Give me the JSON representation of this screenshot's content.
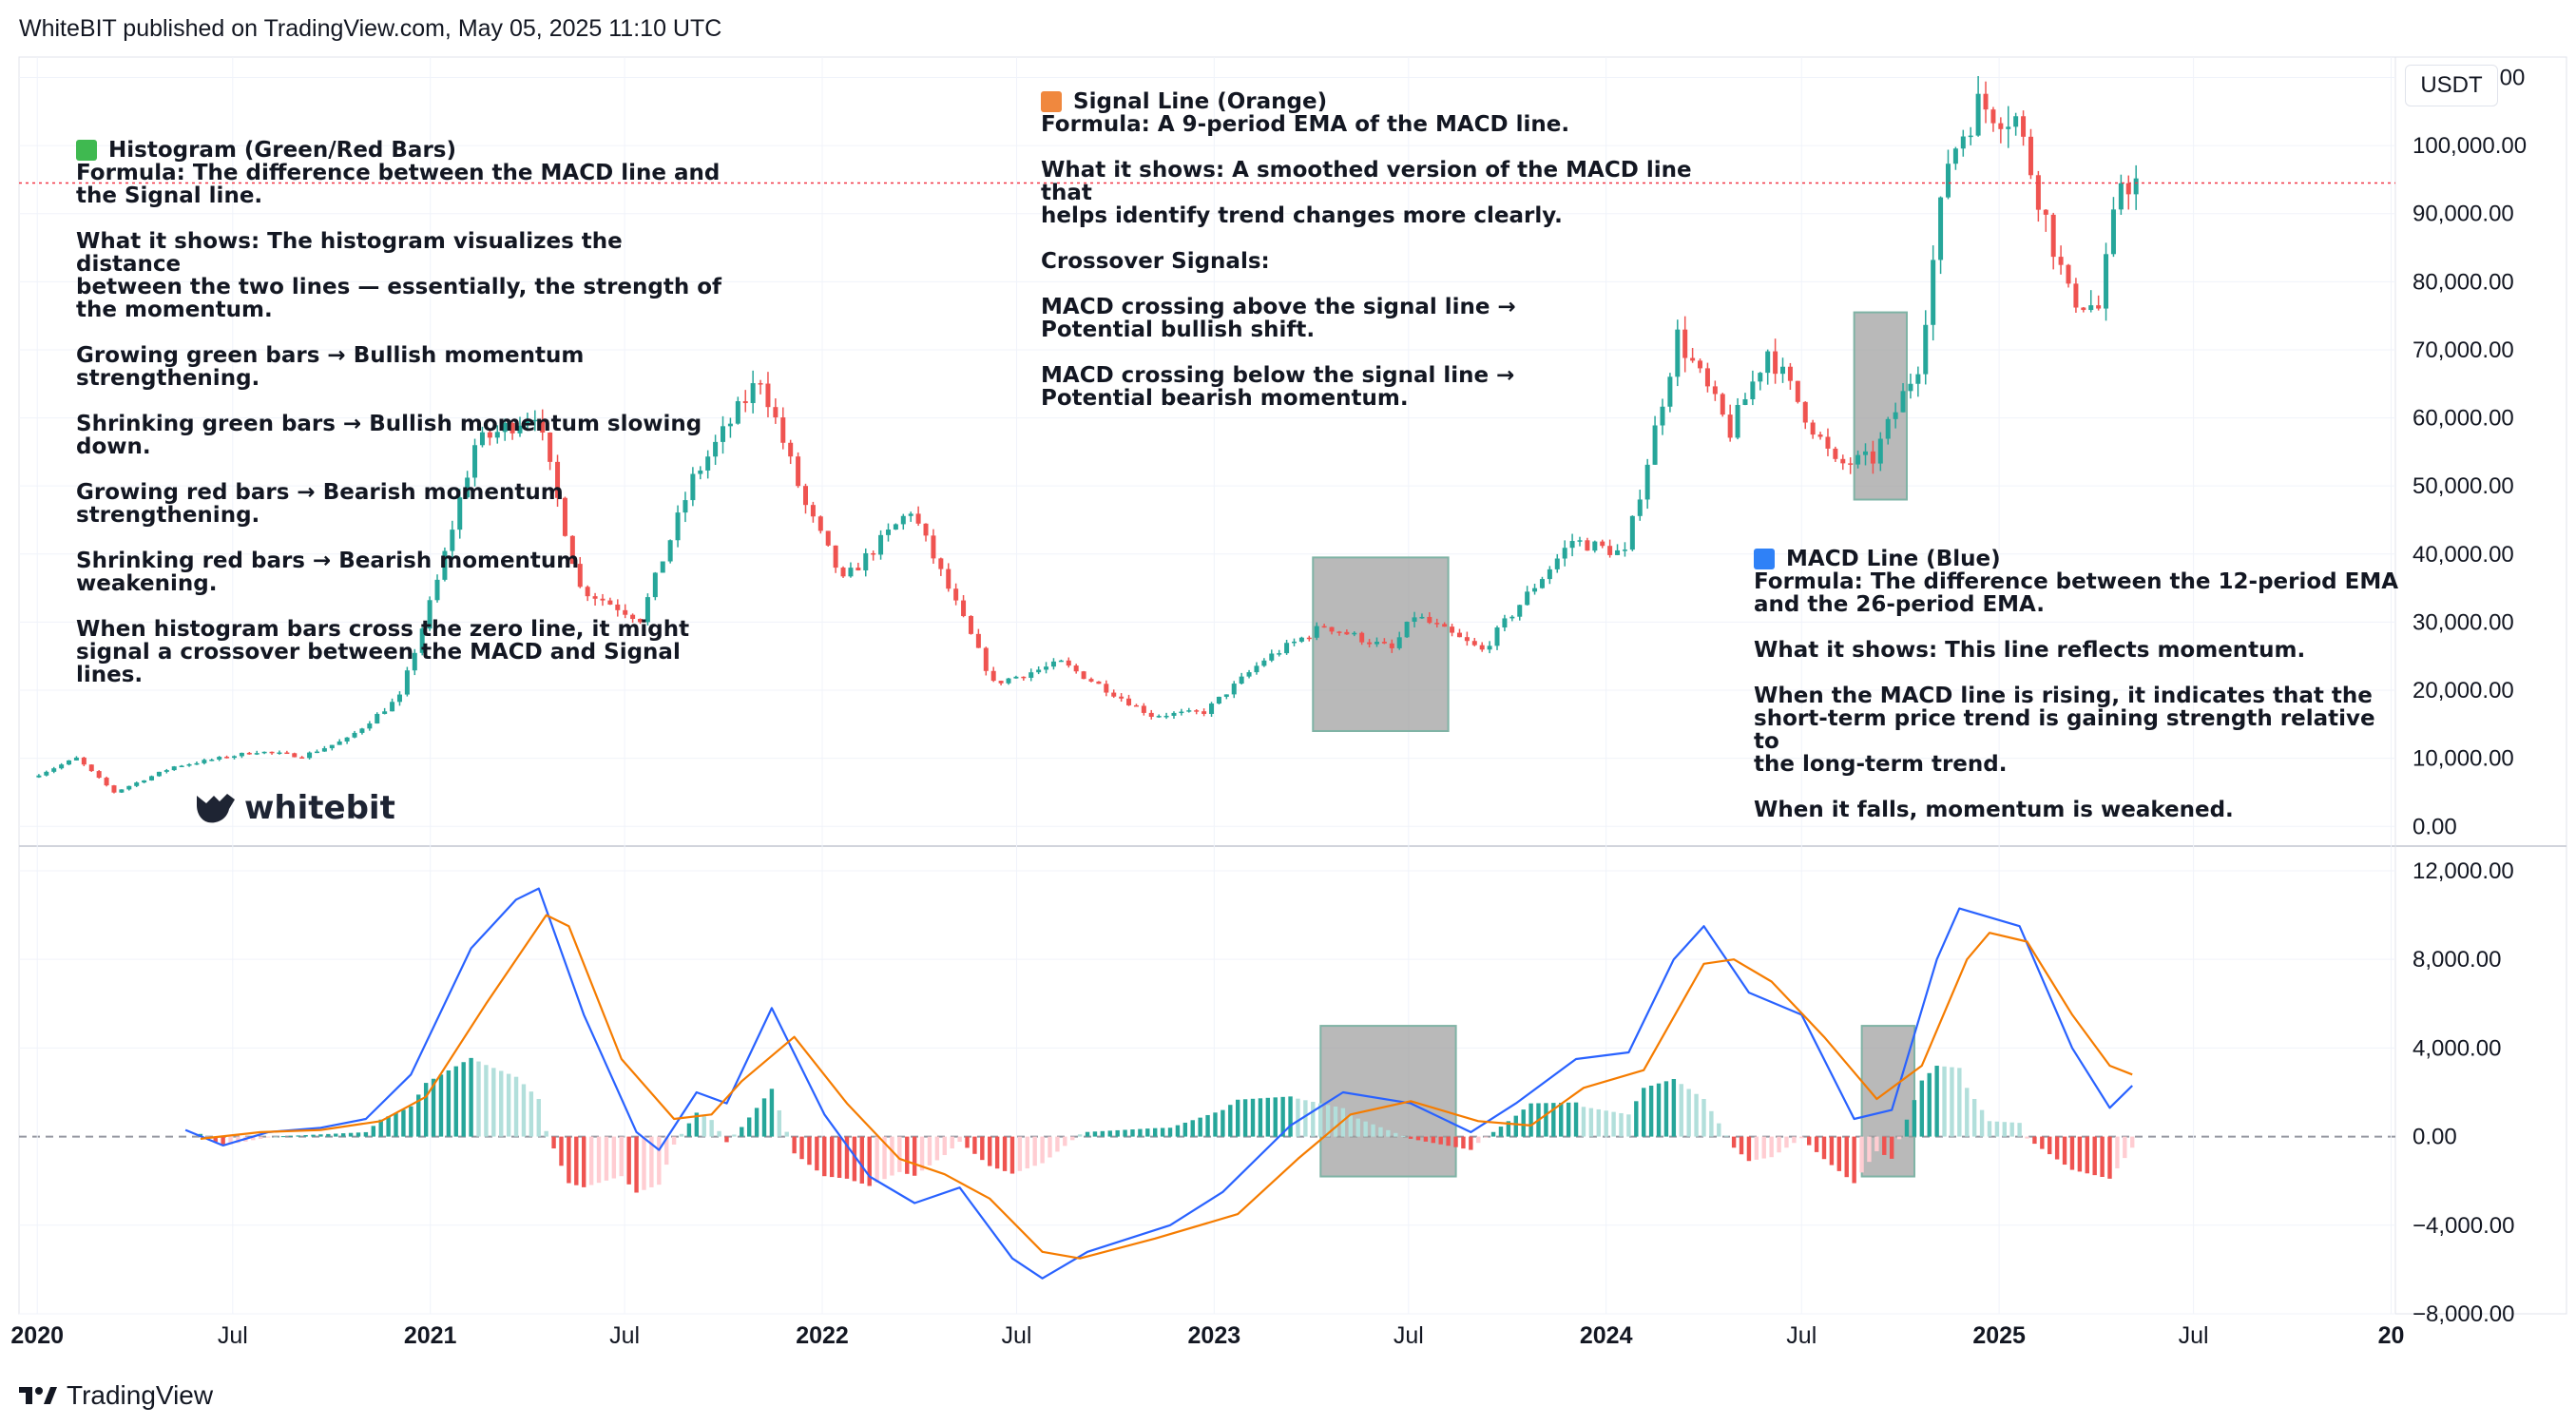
{
  "header": {
    "text": "WhiteBIT published on TradingView.com, May 05, 2025 11:10 UTC"
  },
  "footer": {
    "brand": "TradingView"
  },
  "logo": {
    "text": "whitebit"
  },
  "currency_label": "USDT",
  "colors": {
    "green": "#26a69a",
    "red": "#ef5350",
    "blue": "#2962ff",
    "orange": "#f57c00",
    "box": "#9e9e9e",
    "current_price": "#f23645"
  },
  "annotations": {
    "histogram": {
      "title": "Histogram (Green/Red Bars)",
      "lines": [
        "Formula: The difference between the MACD line and\nthe Signal line.",
        "What it shows: The histogram visualizes the distance\nbetween the two lines — essentially, the strength of\nthe momentum.",
        "Growing green bars → Bullish momentum\nstrengthening.",
        "Shrinking green bars → Bullish momentum slowing\ndown.",
        "Growing red bars → Bearish momentum\nstrengthening.",
        "Shrinking red bars → Bearish momentum weakening.",
        "When histogram bars cross the zero line, it might\nsignal a crossover between the MACD and Signal\nlines."
      ]
    },
    "signal": {
      "title": "Signal Line (Orange)",
      "lines": [
        "Formula: A 9-period EMA of the MACD line.",
        "What it shows: A smoothed version of the MACD line that\nhelps identify trend changes more clearly.",
        "Crossover Signals:",
        "MACD crossing above the signal line →\nPotential bullish shift.",
        "MACD crossing below the signal line →\nPotential bearish momentum."
      ]
    },
    "macd": {
      "title": "MACD Line (Blue)",
      "lines": [
        "Formula: The difference between the 12-period EMA\nand the 26-period EMA.",
        "What it shows: This line reflects momentum.",
        "When the MACD line is rising, it indicates that the\nshort-term price trend is gaining strength relative to\nthe long-term trend.",
        "When it falls, momentum is weakened."
      ]
    }
  },
  "chart_data": [
    {
      "type": "candlestick",
      "title": "",
      "price_axis": {
        "unit": "USDT",
        "ylim": [
          -1500,
          113000
        ],
        "ticks": [
          0,
          10000,
          20000,
          30000,
          40000,
          50000,
          60000,
          70000,
          80000,
          90000,
          100000,
          110000
        ],
        "tick_labels": [
          "0.00",
          "10,000.00",
          "20,000.00",
          "30,000.00",
          "40,000.00",
          "50,000.00",
          "60,000.00",
          "70,000.00",
          "80,000.00",
          "90,000.00",
          "100,000.00",
          "110,000.00"
        ]
      },
      "x_axis": {
        "range": [
          "2019-12-15",
          "2026-01-05"
        ],
        "ticks": [
          "2020-01-01",
          "2020-07-01",
          "2021-01-01",
          "2021-07-01",
          "2022-01-01",
          "2022-07-01",
          "2023-01-01",
          "2023-07-01",
          "2024-01-01",
          "2024-07-01",
          "2025-01-01",
          "2025-07-01",
          "2026-01-01"
        ],
        "tick_labels": [
          "2020",
          "Jul",
          "2021",
          "Jul",
          "2022",
          "Jul",
          "2023",
          "Jul",
          "2024",
          "Jul",
          "2025",
          "Jul",
          "20"
        ]
      },
      "interval": "weekly",
      "price_path": [
        [
          "2019-12-30",
          7200
        ],
        [
          "2020-02-10",
          10000
        ],
        [
          "2020-03-16",
          5000
        ],
        [
          "2020-05-11",
          8800
        ],
        [
          "2020-07-27",
          11000
        ],
        [
          "2020-09-07",
          10300
        ],
        [
          "2020-10-19",
          12800
        ],
        [
          "2020-12-07",
          19000
        ],
        [
          "2021-01-11",
          36000
        ],
        [
          "2021-02-15",
          56000
        ],
        [
          "2021-04-12",
          61000
        ],
        [
          "2021-05-24",
          35000
        ],
        [
          "2021-07-19",
          30500
        ],
        [
          "2021-09-06",
          51000
        ],
        [
          "2021-11-08",
          66000
        ],
        [
          "2021-12-20",
          47000
        ],
        [
          "2022-01-24",
          36000
        ],
        [
          "2022-03-28",
          46500
        ],
        [
          "2022-06-13",
          21000
        ],
        [
          "2022-08-15",
          24000
        ],
        [
          "2022-11-07",
          16300
        ],
        [
          "2022-12-26",
          16800
        ],
        [
          "2023-02-20",
          24500
        ],
        [
          "2023-04-17",
          29500
        ],
        [
          "2023-06-19",
          26000
        ],
        [
          "2023-07-10",
          31000
        ],
        [
          "2023-09-11",
          25800
        ],
        [
          "2023-10-23",
          34000
        ],
        [
          "2023-12-04",
          42000
        ],
        [
          "2024-01-22",
          40000
        ],
        [
          "2024-03-11",
          72000
        ],
        [
          "2024-04-29",
          58000
        ],
        [
          "2024-06-03",
          70000
        ],
        [
          "2024-08-05",
          53000
        ],
        [
          "2024-09-09",
          54000
        ],
        [
          "2024-10-21",
          68000
        ],
        [
          "2024-11-18",
          98000
        ],
        [
          "2024-12-16",
          106000
        ],
        [
          "2025-01-20",
          104000
        ],
        [
          "2025-03-10",
          78000
        ],
        [
          "2025-04-07",
          76000
        ],
        [
          "2025-04-28",
          95000
        ],
        [
          "2025-05-05",
          94500
        ]
      ],
      "current_price": 94500,
      "highlight_boxes": [
        {
          "from": "2023-04-03",
          "to": "2023-08-07",
          "y_range": [
            14000,
            39500
          ]
        },
        {
          "from": "2024-08-19",
          "to": "2024-10-07",
          "y_range": [
            48000,
            75500
          ]
        }
      ]
    },
    {
      "type": "line",
      "title": "",
      "y_axis": {
        "ylim": [
          -8000,
          12600
        ],
        "ticks": [
          -8000,
          -4000,
          0,
          4000,
          8000,
          12000
        ],
        "tick_labels": [
          "−8,000.00",
          "−4,000.00",
          "0.00",
          "4,000.00",
          "8,000.00",
          "12,000.00"
        ]
      },
      "series": [
        {
          "name": "MACD Line (Blue)",
          "color": "#2962ff",
          "points": [
            [
              "2020-05-18",
              300
            ],
            [
              "2020-06-22",
              -400
            ],
            [
              "2020-08-03",
              200
            ],
            [
              "2020-09-21",
              400
            ],
            [
              "2020-11-02",
              800
            ],
            [
              "2020-12-14",
              2800
            ],
            [
              "2021-02-08",
              8500
            ],
            [
              "2021-03-22",
              10700
            ],
            [
              "2021-04-12",
              11200
            ],
            [
              "2021-05-24",
              5500
            ],
            [
              "2021-07-12",
              200
            ],
            [
              "2021-08-02",
              -600
            ],
            [
              "2021-09-06",
              2000
            ],
            [
              "2021-10-04",
              1500
            ],
            [
              "2021-11-15",
              5800
            ],
            [
              "2022-01-03",
              1000
            ],
            [
              "2022-02-14",
              -1800
            ],
            [
              "2022-03-28",
              -3000
            ],
            [
              "2022-05-09",
              -2300
            ],
            [
              "2022-06-27",
              -5500
            ],
            [
              "2022-07-25",
              -6400
            ],
            [
              "2022-09-05",
              -5200
            ],
            [
              "2022-11-21",
              -4000
            ],
            [
              "2023-01-09",
              -2500
            ],
            [
              "2023-03-13",
              500
            ],
            [
              "2023-05-01",
              2000
            ],
            [
              "2023-07-03",
              1500
            ],
            [
              "2023-08-28",
              200
            ],
            [
              "2023-10-09",
              1500
            ],
            [
              "2023-12-04",
              3500
            ],
            [
              "2024-01-22",
              3800
            ],
            [
              "2024-03-04",
              8000
            ],
            [
              "2024-04-01",
              9500
            ],
            [
              "2024-05-13",
              6500
            ],
            [
              "2024-07-01",
              5500
            ],
            [
              "2024-08-19",
              800
            ],
            [
              "2024-09-23",
              1200
            ],
            [
              "2024-11-04",
              8000
            ],
            [
              "2024-11-25",
              10300
            ],
            [
              "2025-01-20",
              9500
            ],
            [
              "2025-03-10",
              4000
            ],
            [
              "2025-04-14",
              1300
            ],
            [
              "2025-05-05",
              2300
            ]
          ]
        },
        {
          "name": "Signal Line (Orange)",
          "color": "#f57c00",
          "points": [
            [
              "2020-06-01",
              -100
            ],
            [
              "2020-07-27",
              200
            ],
            [
              "2020-09-21",
              300
            ],
            [
              "2020-11-16",
              700
            ],
            [
              "2020-12-28",
              1800
            ],
            [
              "2021-02-22",
              6000
            ],
            [
              "2021-04-19",
              10000
            ],
            [
              "2021-05-10",
              9500
            ],
            [
              "2021-06-28",
              3500
            ],
            [
              "2021-08-16",
              800
            ],
            [
              "2021-09-20",
              1000
            ],
            [
              "2021-10-18",
              2500
            ],
            [
              "2021-12-06",
              4500
            ],
            [
              "2022-01-24",
              1500
            ],
            [
              "2022-03-14",
              -1000
            ],
            [
              "2022-04-25",
              -1700
            ],
            [
              "2022-06-06",
              -2800
            ],
            [
              "2022-07-25",
              -5200
            ],
            [
              "2022-08-29",
              -5500
            ],
            [
              "2022-11-07",
              -4600
            ],
            [
              "2023-01-23",
              -3500
            ],
            [
              "2023-03-20",
              -1000
            ],
            [
              "2023-05-08",
              1000
            ],
            [
              "2023-07-03",
              1600
            ],
            [
              "2023-09-04",
              700
            ],
            [
              "2023-10-23",
              500
            ],
            [
              "2023-12-11",
              2200
            ],
            [
              "2024-02-05",
              3000
            ],
            [
              "2024-04-01",
              7800
            ],
            [
              "2024-04-29",
              8000
            ],
            [
              "2024-06-03",
              7000
            ],
            [
              "2024-07-22",
              4500
            ],
            [
              "2024-09-09",
              1700
            ],
            [
              "2024-10-21",
              3200
            ],
            [
              "2024-12-02",
              8000
            ],
            [
              "2024-12-23",
              9200
            ],
            [
              "2025-01-27",
              8800
            ],
            [
              "2025-03-10",
              5500
            ],
            [
              "2025-04-14",
              3200
            ],
            [
              "2025-05-05",
              2800
            ]
          ]
        }
      ]
    }
  ]
}
